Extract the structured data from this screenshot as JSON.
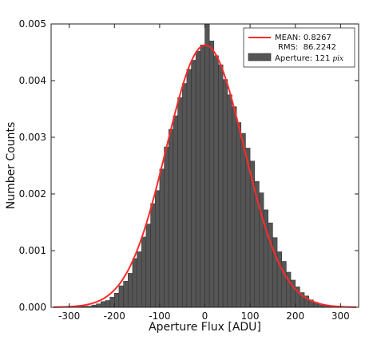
{
  "chart_data": {
    "type": "bar",
    "xlabel": "Aperture Flux [ADU]",
    "ylabel": "Number Counts",
    "xlim": [
      -340,
      340
    ],
    "ylim": [
      0,
      0.005
    ],
    "x_ticks": [
      "-300",
      "-200",
      "-100",
      "0",
      "100",
      "200",
      "300"
    ],
    "y_ticks": [
      "0.000",
      "0.001",
      "0.002",
      "0.003",
      "0.004",
      "0.005"
    ],
    "legend_placement": "top-right",
    "colors": {
      "bars": "#555555",
      "curve": "#ff2a2a"
    },
    "histogram": {
      "name": "Aperture: 121",
      "name_unit": "pix",
      "bin_width": 10,
      "bin_starts": [
        -300,
        -290,
        -280,
        -270,
        -260,
        -250,
        -240,
        -230,
        -220,
        -210,
        -200,
        -190,
        -180,
        -170,
        -160,
        -150,
        -140,
        -130,
        -120,
        -110,
        -100,
        -90,
        -80,
        -70,
        -60,
        -50,
        -40,
        -30,
        -20,
        -10,
        0,
        10,
        20,
        30,
        40,
        50,
        60,
        70,
        80,
        90,
        100,
        110,
        120,
        130,
        140,
        150,
        160,
        170,
        180,
        190,
        200,
        210,
        220,
        230,
        240,
        250,
        260,
        270,
        280,
        290
      ],
      "values": [
        0.0,
        1e-05,
        2e-05,
        2e-05,
        2e-05,
        4e-05,
        6e-05,
        0.0001,
        0.00012,
        0.00018,
        0.00025,
        0.00038,
        0.00046,
        0.0006,
        0.00086,
        0.00098,
        0.00124,
        0.00147,
        0.00183,
        0.00206,
        0.00244,
        0.00283,
        0.00314,
        0.00338,
        0.0037,
        0.00395,
        0.0042,
        0.00436,
        0.00452,
        0.00463,
        0.005,
        0.0047,
        0.00444,
        0.00428,
        0.00402,
        0.00375,
        0.00354,
        0.00326,
        0.00307,
        0.00281,
        0.00258,
        0.00222,
        0.00202,
        0.00172,
        0.00149,
        0.00123,
        0.00098,
        0.00081,
        0.00062,
        0.00048,
        0.00036,
        0.00026,
        0.0002,
        0.00013,
        9e-05,
        6e-05,
        4e-05,
        2e-05,
        1e-05,
        0.0
      ]
    },
    "fit": {
      "type": "gaussian",
      "mean": 0.8267,
      "rms": 86.2242,
      "mean_label": "MEAN: 0.8267",
      "rms_label": "RMS:  86.2242"
    }
  }
}
